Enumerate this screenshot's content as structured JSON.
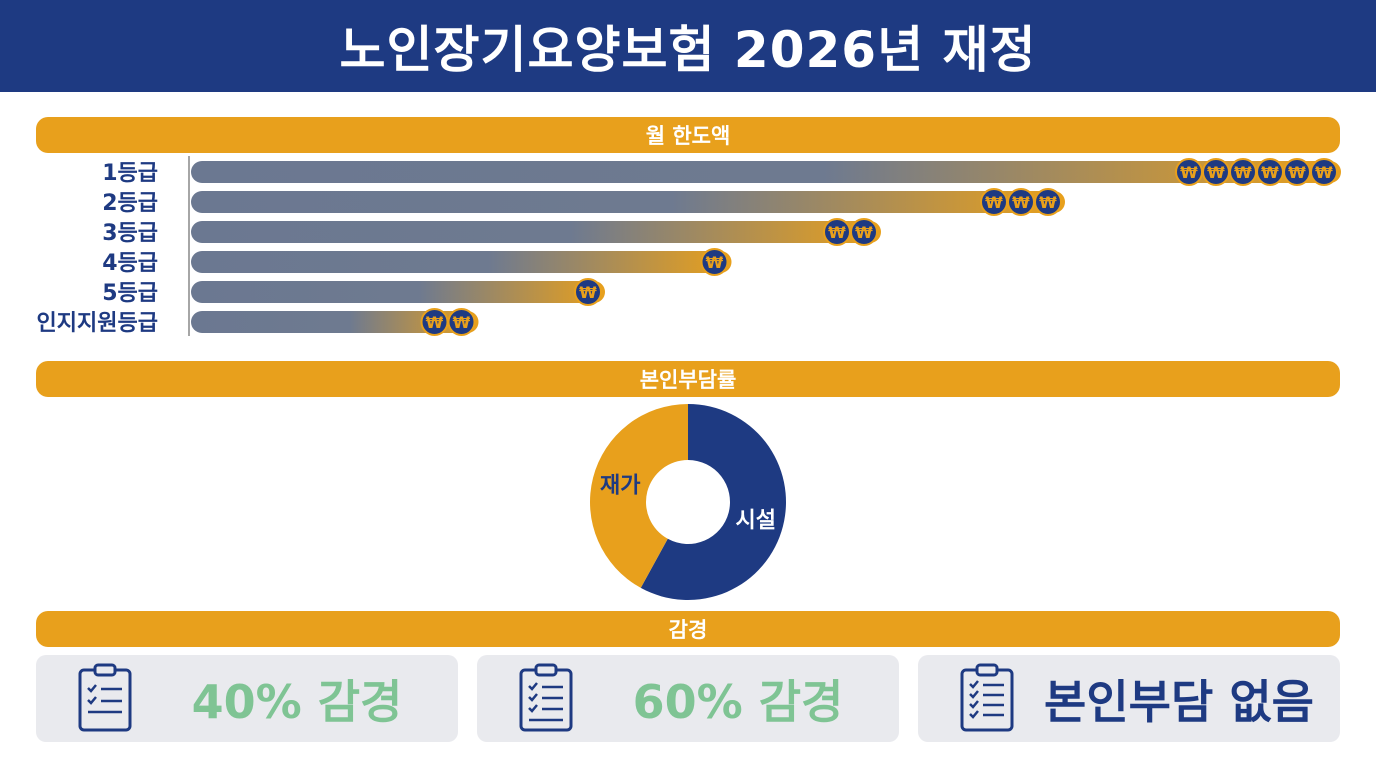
{
  "title": "노인장기요양보험 2026년 재정",
  "sections": {
    "limit": "월 한도액",
    "copay": "본인부담률",
    "reduction": "감경"
  },
  "colors": {
    "navy": "#1e3a82",
    "orange": "#e8a01c",
    "grey_blue": "#6b7891",
    "green": "#7fc494",
    "card_bg": "#e9eaee"
  },
  "icons": {
    "coin": "won-coin-icon",
    "card": "clipboard-checklist-icon"
  },
  "chart_data": [
    {
      "type": "bar",
      "orientation": "horizontal",
      "title": "월 한도액",
      "categories": [
        "1등급",
        "2등급",
        "3등급",
        "4등급",
        "5등급",
        "인지지원등급"
      ],
      "values": [
        1.0,
        0.76,
        0.6,
        0.47,
        0.36,
        0.25
      ],
      "coin_counts": [
        6,
        3,
        2,
        1,
        1,
        2
      ],
      "value_unit": "relative length (no numeric axis shown)",
      "grid": false
    },
    {
      "type": "pie",
      "subtype": "donut",
      "title": "본인부담률",
      "categories": [
        "시설",
        "재가"
      ],
      "values": [
        58,
        42
      ],
      "value_unit": "approximate share of ring",
      "colors": [
        "#1e3a82",
        "#e8a01c"
      ]
    }
  ],
  "cards": [
    {
      "label": "40% 감경",
      "style": "green"
    },
    {
      "label": "60% 감경",
      "style": "green"
    },
    {
      "label": "본인부담 없음",
      "style": "navy"
    }
  ]
}
